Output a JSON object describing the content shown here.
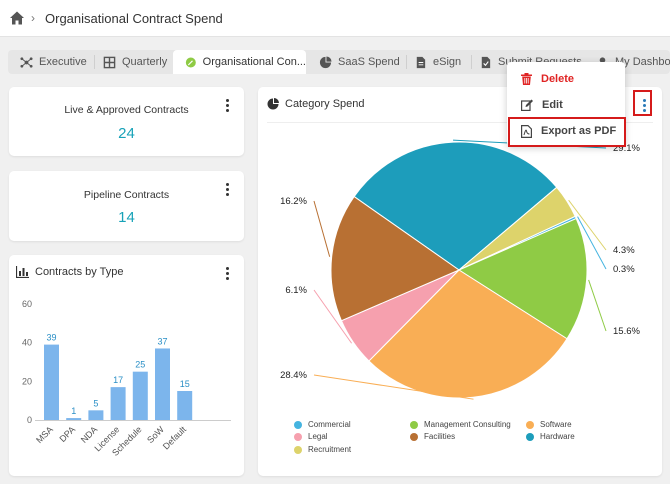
{
  "breadcrumb": {
    "title": "Organisational Contract Spend"
  },
  "tabs": [
    {
      "label": "Executive",
      "icon": "network-icon"
    },
    {
      "label": "Quarterly",
      "icon": "grid-icon"
    },
    {
      "label": "Organisational Con...",
      "icon": "leaf-icon",
      "active": true
    },
    {
      "label": "SaaS Spend",
      "icon": "pie-icon"
    },
    {
      "label": "eSign",
      "icon": "document-icon"
    },
    {
      "label": "Submit Requests",
      "icon": "document-check-icon"
    },
    {
      "label": "My Dashboar",
      "icon": "user-icon"
    }
  ],
  "kpis": {
    "live": {
      "title": "Live & Approved Contracts",
      "value": "24"
    },
    "pipeline": {
      "title": "Pipeline Contracts",
      "value": "14"
    }
  },
  "contracts_by_type": {
    "title": "Contracts by Type"
  },
  "category_spend": {
    "title": "Category Spend"
  },
  "menu": {
    "delete": "Delete",
    "edit": "Edit",
    "export": "Export as PDF"
  },
  "colors": {
    "accent": "#17a2b8",
    "bar": "#7cb5ec",
    "delete": "#e02424",
    "highlight": "#d51b1b"
  },
  "chart_data": [
    {
      "type": "bar",
      "title": "Contracts by Type",
      "categories": [
        "MSA",
        "DPA",
        "NDA",
        "License",
        "Schedule",
        "SoW",
        "Default"
      ],
      "values": [
        39,
        1,
        5,
        17,
        25,
        37,
        15
      ],
      "ylim": [
        0,
        60
      ],
      "yticks": [
        "0",
        "20",
        "40",
        "60"
      ],
      "grid": false
    },
    {
      "type": "pie",
      "title": "Category Spend",
      "labels": [
        "Hardware",
        "Recruitment",
        "Commercial",
        "Management Consulting",
        "Software",
        "Legal",
        "Facilities"
      ],
      "values": [
        29.1,
        4.3,
        0.3,
        15.6,
        28.4,
        6.1,
        16.2
      ],
      "value_labels": [
        "29.1%",
        "4.3%",
        "0.3%",
        "15.6%",
        "28.4%",
        "6.1%",
        "16.2%"
      ],
      "colors": [
        "#1d9dbb",
        "#ddd36b",
        "#45b4e0",
        "#8fcb45",
        "#f9ae55",
        "#f6a0ae",
        "#b87033"
      ],
      "legend": [
        {
          "label": "Commercial",
          "color": "#45b4e0"
        },
        {
          "label": "Management Consulting",
          "color": "#8fcb45"
        },
        {
          "label": "Software",
          "color": "#f9ae55"
        },
        {
          "label": "Legal",
          "color": "#f6a0ae"
        },
        {
          "label": "Facilities",
          "color": "#b87033"
        },
        {
          "label": "Hardware",
          "color": "#1d9dbb"
        },
        {
          "label": "Recruitment",
          "color": "#ddd36b"
        }
      ],
      "legend_position": "bottom"
    }
  ]
}
